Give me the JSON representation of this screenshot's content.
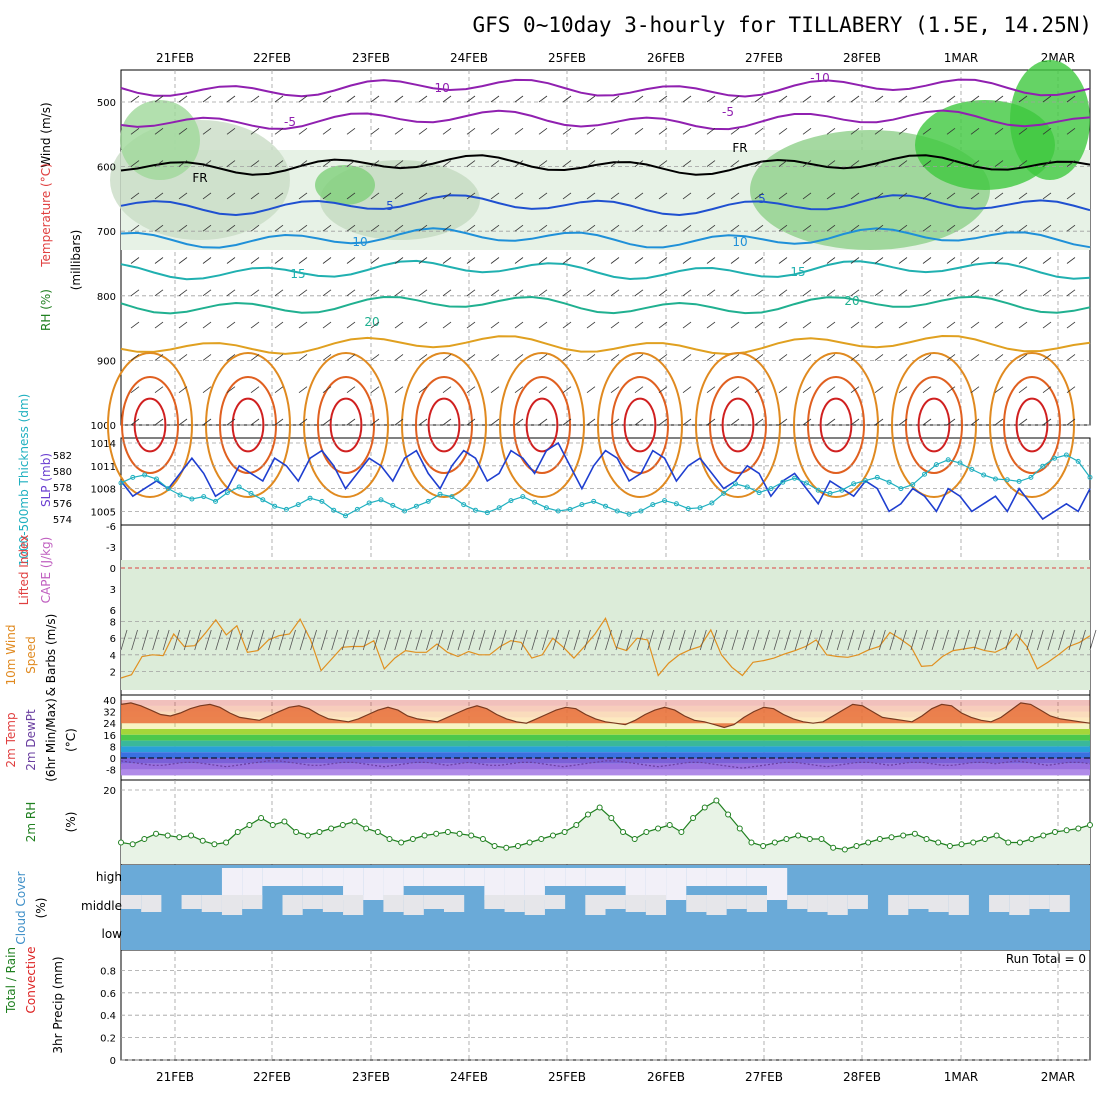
{
  "chart_data": {
    "type": "meteogram",
    "title": "GFS 0~10day 3-hourly for TILLABERY (1.5E, 14.25N)",
    "dates": [
      "21FEB",
      "22FEB",
      "23FEB",
      "24FEB",
      "25FEB",
      "26FEB",
      "27FEB",
      "28FEB",
      "1MAR",
      "2MAR"
    ],
    "colors": {
      "grid": "#a0a0a0",
      "slp": "#1f3fd0",
      "thickness": "#20b0c0",
      "dewpt": "#6a3fa0",
      "rh": "#208020",
      "wind": "#e09020",
      "cloud": "#6aaad8",
      "precip_total": "#2a9a2a",
      "precip_conv": "#dd2222"
    },
    "panels": {
      "upper": {
        "ylabels": [
          "Wind",
          "(m/s)",
          "Temperature",
          "(°C)",
          "RH",
          "(%)",
          "(millibars)"
        ],
        "yticks": [
          "500",
          "600",
          "700",
          "800",
          "900",
          "1000"
        ],
        "temp_labels": [
          "-10",
          "-10",
          "-5",
          "-5",
          "FR",
          "FR",
          "5",
          "5",
          "10",
          "10",
          "15",
          "15",
          "20",
          "20"
        ]
      },
      "slp": {
        "ylabels": [
          "1000-500mb",
          "Thickness (dm)",
          "SLP (mb)"
        ],
        "thickness_ticks": [
          "582",
          "580",
          "578",
          "576",
          "574"
        ],
        "slp_ticks": [
          "1014",
          "1011",
          "1008",
          "1005"
        ],
        "slp_series": [
          1009,
          1007,
          1008,
          1009,
          1008,
          1010,
          1012,
          1010,
          1007,
          1008,
          1011,
          1010,
          1009,
          1012,
          1011,
          1009,
          1012,
          1013,
          1011,
          1008,
          1010,
          1012,
          1011,
          1009,
          1012,
          1013,
          1010,
          1008,
          1011,
          1013,
          1012,
          1009,
          1010,
          1013,
          1012,
          1010,
          1013,
          1014,
          1011,
          1008,
          1011,
          1013,
          1012,
          1009,
          1010,
          1013,
          1012,
          1009,
          1011,
          1012,
          1010,
          1008,
          1009,
          1011,
          1010,
          1007,
          1009,
          1010,
          1008,
          1006,
          1009,
          1008,
          1007,
          1009,
          1008,
          1005,
          1006,
          1008,
          1007,
          1005,
          1008,
          1007,
          1005,
          1006,
          1007,
          1005,
          1008,
          1006,
          1004,
          1005,
          1006,
          1005,
          1008
        ],
        "thickness_series": [
          578.5,
          579.2,
          579.5,
          579.0,
          577.8,
          577.0,
          576.5,
          576.8,
          576.2,
          577.3,
          578.0,
          577.2,
          576.4,
          575.6,
          575.2,
          575.8,
          576.6,
          576.2,
          575.1,
          574.4,
          575.2,
          576.0,
          576.4,
          575.7,
          575.0,
          575.6,
          576.2,
          577.1,
          576.8,
          575.8,
          575.1,
          574.8,
          575.4,
          576.3,
          576.8,
          576.1,
          575.4,
          575.0,
          575.2,
          575.8,
          576.2,
          575.6,
          575.0,
          574.6,
          575.0,
          575.8,
          576.3,
          575.9,
          575.3,
          575.4,
          576.0,
          577.2,
          578.4,
          578.0,
          577.3,
          577.8,
          578.6,
          579.1,
          578.5,
          577.6,
          577.2,
          577.6,
          578.4,
          578.8,
          579.2,
          578.6,
          577.8,
          578.3,
          579.6,
          580.8,
          581.4,
          581.0,
          580.2,
          579.5,
          579.0,
          578.9,
          578.7,
          579.2,
          580.6,
          581.6,
          582.0,
          581.2,
          579.2
        ]
      },
      "cape": {
        "ylabels": [
          "Lifted Index",
          "CAPE (J/kg)"
        ],
        "yticks": [
          "-6",
          "-3",
          "0",
          "3",
          "6"
        ]
      },
      "wind10m": {
        "ylabels": [
          "10m Wind",
          "Speed",
          "& Barbs",
          "(m/s)"
        ],
        "yticks": [
          "8",
          "6",
          "4",
          "2"
        ],
        "speed_series": [
          1.2,
          1.6,
          3.8,
          4.0,
          3.9,
          6.5,
          5.0,
          5.1,
          6.6,
          8.2,
          6.4,
          7.5,
          4.3,
          4.5,
          5.8,
          6.3,
          6.5,
          8.3,
          5.8,
          2.1,
          3.5,
          4.9,
          5.0,
          5.0,
          5.7,
          2.3,
          3.6,
          4.5,
          4.3,
          4.3,
          5.3,
          4.3,
          3.8,
          4.4,
          4.0,
          4.0,
          5.0,
          5.7,
          5.5,
          3.6,
          4.0,
          6.0,
          4.9,
          3.6,
          5.0,
          6.5,
          8.4,
          4.9,
          4.5,
          6.0,
          5.8,
          1.5,
          3.0,
          4.0,
          4.6,
          5.0,
          7.0,
          4.0,
          2.5,
          1.5,
          3.1,
          3.3,
          3.6,
          4.1,
          4.5,
          5.0,
          5.8,
          4.0,
          3.8,
          3.7,
          4.0,
          4.6,
          5.0,
          6.7,
          5.9,
          5.0,
          2.6,
          2.7,
          3.8,
          4.5,
          4.7,
          4.9,
          4.5,
          4.3,
          4.9,
          6.5,
          5.0,
          2.3,
          3.1,
          4.0,
          5.0,
          5.5,
          6.3
        ]
      },
      "temp2m": {
        "ylabels": [
          "2m Temp",
          "2m DewPt",
          "(6hr Min/Max)",
          "(°C)"
        ],
        "yticks": [
          "40",
          "32",
          "24",
          "16",
          "8",
          "0",
          "-8"
        ],
        "temp_series": [
          37,
          38,
          36,
          33,
          30,
          29,
          31,
          34,
          36,
          37,
          35,
          31,
          28,
          27,
          26,
          29,
          32,
          35,
          36,
          34,
          30,
          27,
          26,
          25,
          27,
          30,
          33,
          35,
          33,
          29,
          27,
          26,
          25,
          28,
          31,
          34,
          36,
          34,
          30,
          27,
          25,
          24,
          27,
          30,
          33,
          35,
          34,
          30,
          27,
          25,
          24,
          23,
          26,
          30,
          33,
          35,
          33,
          29,
          26,
          25,
          23,
          21,
          23,
          28,
          32,
          35,
          34,
          30,
          27,
          25,
          24,
          25,
          29,
          33,
          37,
          36,
          32,
          28,
          27,
          26,
          25,
          29,
          34,
          37,
          36,
          31,
          28,
          26,
          25,
          28,
          33,
          38,
          37,
          33,
          29,
          27,
          26,
          25,
          24
        ],
        "dewpt_series": [
          -2,
          -3,
          -4,
          -5,
          -5,
          -4,
          -3,
          -3,
          -4,
          -5,
          -6,
          -5,
          -4,
          -3,
          -2,
          -2,
          -3,
          -4,
          -5,
          -5,
          -4,
          -3,
          -3,
          -4,
          -5,
          -6,
          -5,
          -4,
          -3,
          -3,
          -4,
          -5,
          -4,
          -3,
          -4,
          -5,
          -5,
          -4,
          -3,
          -3,
          -4,
          -5,
          -6,
          -5,
          -4,
          -3,
          -2,
          -2,
          -3,
          -4,
          -5,
          -6,
          -5,
          -4,
          -3,
          -3,
          -4,
          -5,
          -6,
          -7,
          -6,
          -5,
          -4,
          -3,
          -3,
          -4,
          -5,
          -6,
          -5,
          -4,
          -3,
          -3,
          -4,
          -5,
          -4,
          -3,
          -3,
          -4,
          -5,
          -5,
          -4,
          -3,
          -3,
          -4,
          -3,
          -2,
          -3,
          -4,
          -5,
          -4,
          -3,
          -3,
          -4
        ]
      },
      "rh2m": {
        "ylabels": [
          "2m RH",
          "(%)"
        ],
        "yticks": [
          "20"
        ],
        "rh_series": [
          5,
          4.5,
          6,
          7.5,
          7,
          6.5,
          7,
          5.5,
          4.5,
          5,
          8,
          10,
          12,
          10,
          11,
          8,
          7,
          8,
          9,
          10,
          11,
          9,
          8,
          6,
          5,
          6,
          7,
          7.5,
          8,
          7.5,
          7,
          6,
          4,
          3.5,
          4,
          5,
          6,
          7,
          8,
          10,
          13,
          15,
          12,
          8,
          6,
          8,
          9,
          10,
          8,
          12,
          15,
          17,
          13,
          9,
          5,
          4,
          5,
          6,
          7,
          6,
          6,
          3.5,
          3,
          4,
          5,
          6,
          6.5,
          7,
          7.5,
          6,
          5,
          4,
          4.5,
          5,
          6,
          7,
          5,
          5,
          6,
          7,
          8,
          8.5,
          9,
          10
        ]
      },
      "cloud": {
        "ylabels": [
          "Cloud Cover",
          "(%)"
        ],
        "levels": [
          "high",
          "middle",
          "low"
        ]
      },
      "precip": {
        "ylabels": [
          "Total / Rain",
          "Convective",
          "3hr Precip (mm)"
        ],
        "yticks": [
          "0.8",
          "0.6",
          "0.4",
          "0.2",
          "0"
        ],
        "run_total": "Run Total = 0"
      }
    }
  }
}
